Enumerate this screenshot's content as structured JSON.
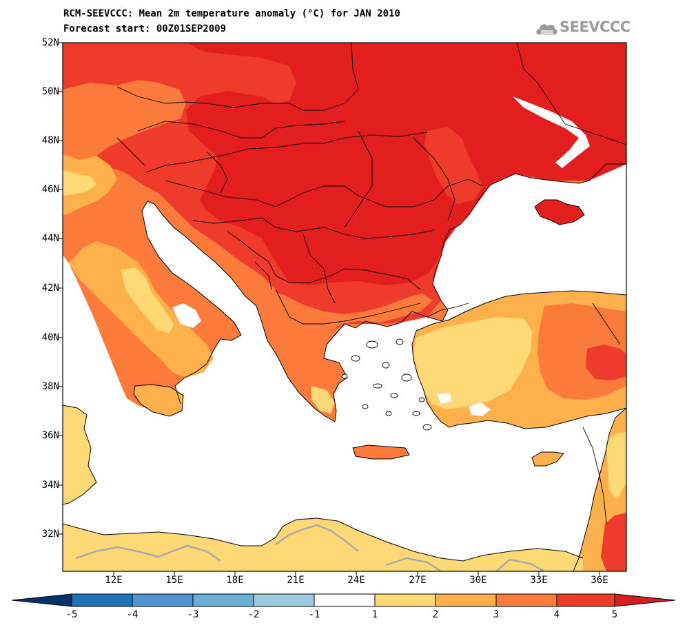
{
  "title": {
    "line1": "RCM-SEEVCCC: Mean 2m temperature anomaly (°C) for JAN 2010",
    "line2": "Forecast start: 00Z01SEP2009"
  },
  "logo": {
    "text": "SEEVCCC",
    "icon": "cloud-logo-icon"
  },
  "map": {
    "lat_labels": [
      "52N",
      "50N",
      "48N",
      "46N",
      "44N",
      "42N",
      "40N",
      "38N",
      "36N",
      "34N",
      "32N"
    ],
    "lon_labels": [
      "12E",
      "15E",
      "18E",
      "21E",
      "24E",
      "27E",
      "30E",
      "33E",
      "36E"
    ]
  },
  "colorbar": {
    "labels": [
      "-5",
      "-4",
      "-3",
      "-2",
      "-1",
      "1",
      "2",
      "3",
      "4",
      "5"
    ],
    "colors": [
      "#08306b",
      "#2171b5",
      "#4f93cf",
      "#6baed6",
      "#9ecae1",
      "#ffffff",
      "#fed976",
      "#fdb04b",
      "#fc7b3a",
      "#ef3b2c",
      "#d31f1f"
    ]
  },
  "palette": {
    "land_low": "#fed976",
    "land_mid": "#fdb04b",
    "land_high": "#fc7b3a",
    "land_higher": "#ef3b2c",
    "land_max": "#e21e1e",
    "sea": "#ffffff",
    "border_line": "#000000",
    "gray_contour": "#a9a9a9"
  }
}
